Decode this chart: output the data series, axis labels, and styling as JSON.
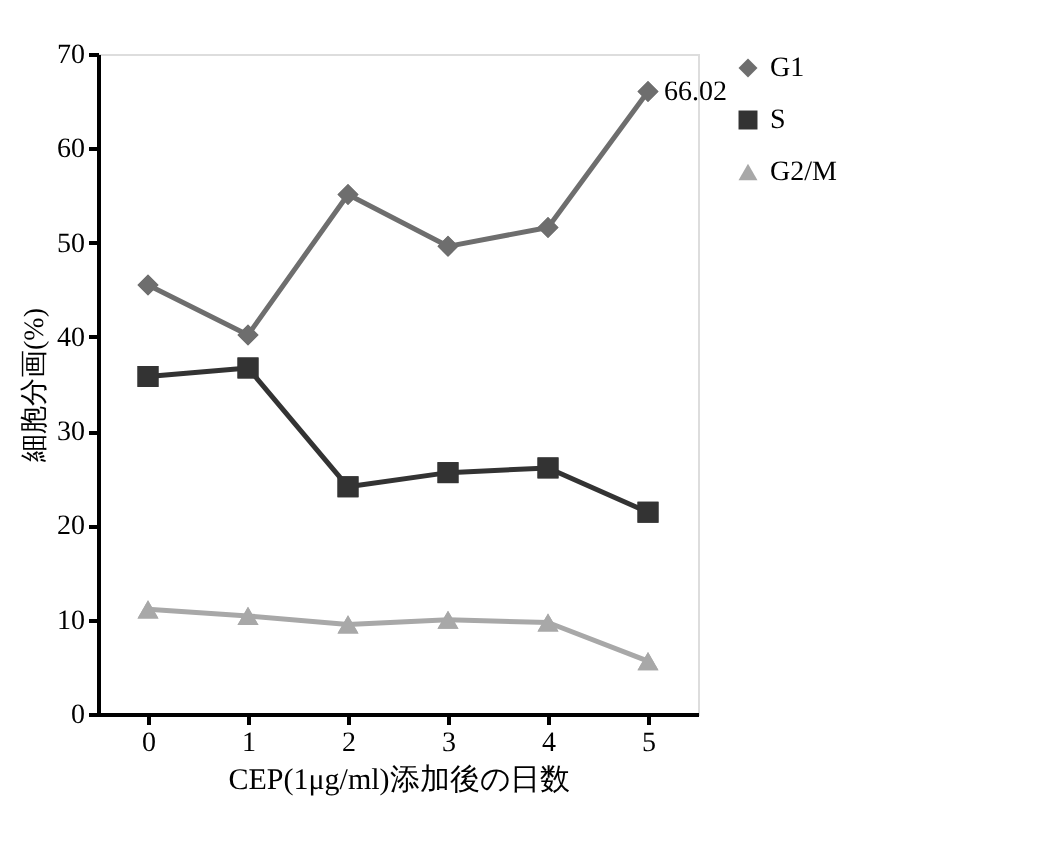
{
  "chart_data": {
    "type": "line",
    "xlabel": "CEP(1μg/ml)添加後の日数",
    "ylabel": "細胞分画(%)",
    "categories": [
      "0",
      "1",
      "2",
      "3",
      "4",
      "5"
    ],
    "series": [
      {
        "name": "G1",
        "color": "#6e6e6e",
        "marker": "diamond",
        "values": [
          45.5,
          40.2,
          55.1,
          49.6,
          51.6,
          66.02
        ]
      },
      {
        "name": "S",
        "color": "#333333",
        "marker": "square",
        "values": [
          35.8,
          36.7,
          24.1,
          25.6,
          26.1,
          21.4
        ]
      },
      {
        "name": "G2/M",
        "color": "#a8a8a8",
        "marker": "triangle",
        "values": [
          11.1,
          10.4,
          9.5,
          10.0,
          9.7,
          5.6
        ]
      }
    ],
    "annotations": [
      {
        "text": "66.02",
        "x": "5",
        "y": 66.02
      }
    ],
    "ylim": [
      0,
      70
    ],
    "yticks": [
      0,
      10,
      20,
      30,
      40,
      50,
      60,
      70
    ],
    "grid": false,
    "legend": "right",
    "line_style": "solid"
  }
}
